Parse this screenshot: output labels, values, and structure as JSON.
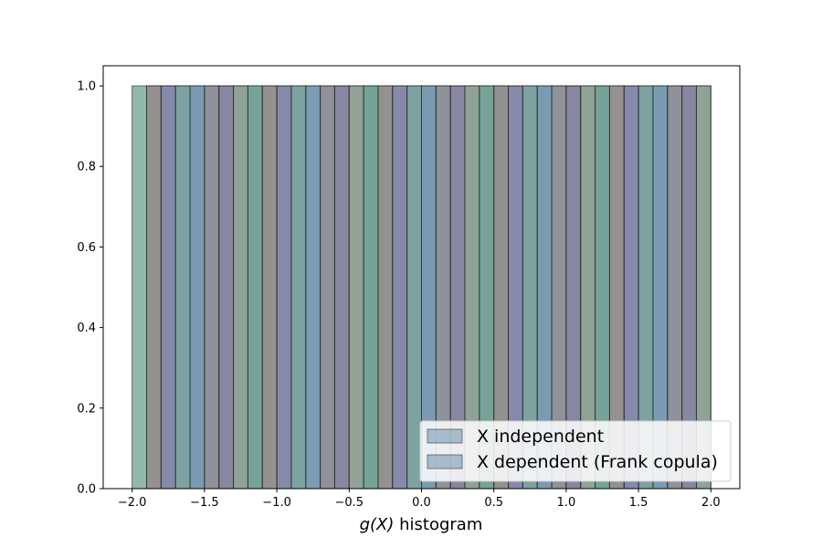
{
  "chart_data": {
    "type": "bar",
    "xlabel_var": "g(X)",
    "xlabel_suffix": " histogram",
    "xlim": [
      -2.2,
      2.2
    ],
    "ylim": [
      0,
      1.05
    ],
    "xticks": [
      -2.0,
      -1.5,
      -1.0,
      -0.5,
      0.0,
      0.5,
      1.0,
      1.5,
      2.0
    ],
    "xtick_labels": [
      "−2.0",
      "−1.5",
      "−1.0",
      "−0.5",
      "0.0",
      "0.5",
      "1.0",
      "1.5",
      "2.0"
    ],
    "yticks": [
      0.0,
      0.2,
      0.4,
      0.6,
      0.8,
      1.0
    ],
    "ytick_labels": [
      "0.0",
      "0.2",
      "0.4",
      "0.6",
      "0.8",
      "1.0"
    ],
    "grid": false,
    "legend_position": "bottom-right",
    "series": [
      {
        "name": "X independent",
        "color": "#4f7fa0",
        "bin_range": [
          -2.0,
          2.0
        ],
        "bin_count": 40,
        "value": 1.0
      },
      {
        "name": "X dependent (Frank copula)",
        "color": "#4f7fa0",
        "bin_range": [
          -1.9,
          2.0
        ],
        "bin_count": 39,
        "value": 1.0
      }
    ]
  }
}
